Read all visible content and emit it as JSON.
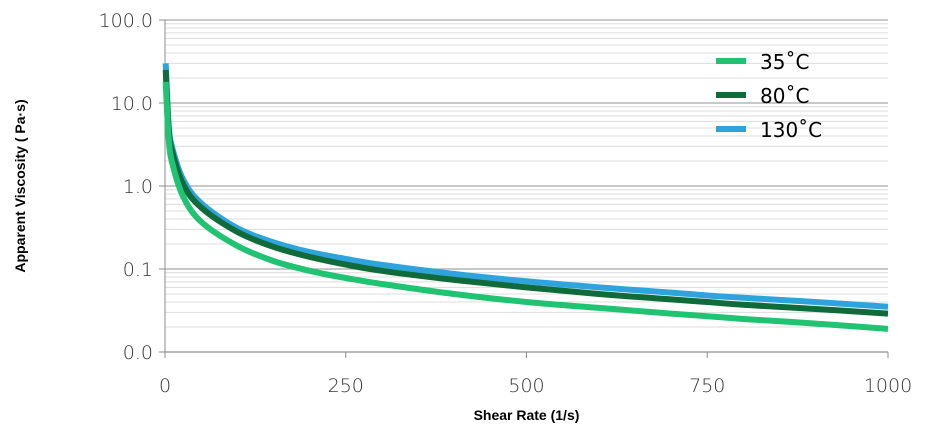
{
  "chart_data": {
    "type": "line",
    "title": "",
    "xlabel": "Shear Rate (1/s)",
    "ylabel": "Apparent Viscosity ( Pa·s)",
    "x_scale": "linear",
    "y_scale": "log",
    "xlim": [
      0,
      1000
    ],
    "ylim": [
      0.01,
      100
    ],
    "x_ticks": [
      0,
      250,
      500,
      750,
      1000
    ],
    "x_tick_labels": [
      "0",
      "250",
      "500",
      "750",
      "1000"
    ],
    "y_ticks": [
      0.01,
      0.1,
      1,
      10,
      100
    ],
    "y_tick_labels": [
      "0.0",
      "0.1",
      "1.0",
      "10.0",
      "100.0"
    ],
    "grid": "horizontal major and minor",
    "legend_position": "top-right",
    "series": [
      {
        "name": "35˚C",
        "color": "#1fc372",
        "x": [
          1,
          5,
          10,
          25,
          50,
          100,
          150,
          200,
          250,
          300,
          400,
          500,
          600,
          700,
          750,
          800,
          900,
          1000
        ],
        "y": [
          18,
          3.8,
          1.9,
          0.75,
          0.37,
          0.19,
          0.125,
          0.095,
          0.078,
          0.066,
          0.05,
          0.04,
          0.034,
          0.029,
          0.027,
          0.025,
          0.022,
          0.019
        ]
      },
      {
        "name": "80˚C",
        "color": "#106b3a",
        "x": [
          1,
          5,
          10,
          25,
          50,
          100,
          150,
          200,
          250,
          300,
          400,
          500,
          600,
          700,
          750,
          800,
          900,
          1000
        ],
        "y": [
          25,
          5,
          2.6,
          1.05,
          0.55,
          0.28,
          0.185,
          0.14,
          0.113,
          0.095,
          0.074,
          0.06,
          0.05,
          0.043,
          0.04,
          0.037,
          0.033,
          0.029
        ]
      },
      {
        "name": "130˚C",
        "color": "#2fa4dc",
        "x": [
          1,
          5,
          10,
          25,
          50,
          100,
          150,
          200,
          250,
          300,
          400,
          500,
          600,
          700,
          750,
          800,
          900,
          1000
        ],
        "y": [
          30,
          5.5,
          2.9,
          1.2,
          0.62,
          0.31,
          0.21,
          0.16,
          0.132,
          0.112,
          0.087,
          0.071,
          0.06,
          0.052,
          0.048,
          0.045,
          0.04,
          0.035
        ]
      }
    ]
  }
}
